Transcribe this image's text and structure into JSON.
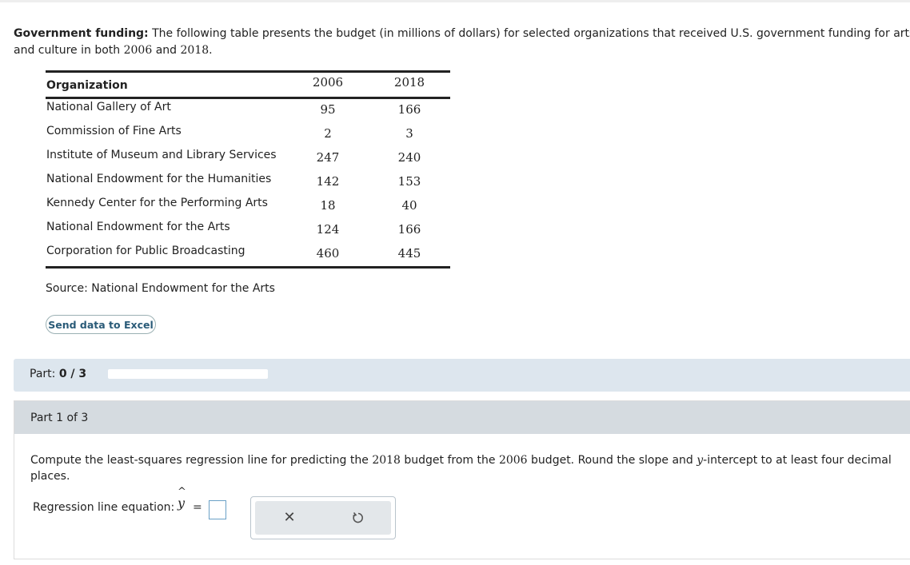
{
  "intro": {
    "title": "Government funding:",
    "text_line1": " The following table presents the budget (in millions of dollars) for selected organizations that received U.S. government funding for arts",
    "text_line2_a": "and culture in both ",
    "year_a": "2006",
    "text_line2_b": " and ",
    "year_b": "2018",
    "text_line2_c": "."
  },
  "table": {
    "headers": {
      "org": "Organization",
      "y2006": "2006",
      "y2018": "2018"
    },
    "rows": [
      {
        "org": "National Gallery of Art",
        "y2006": "95",
        "y2018": "166"
      },
      {
        "org": "Commission of Fine Arts",
        "y2006": "2",
        "y2018": "3"
      },
      {
        "org": "Institute of Museum and Library Services",
        "y2006": "247",
        "y2018": "240"
      },
      {
        "org": "National Endowment for the Humanities",
        "y2006": "142",
        "y2018": "153"
      },
      {
        "org": "Kennedy Center for the Performing Arts",
        "y2006": "18",
        "y2018": "40"
      },
      {
        "org": "National Endowment for the Arts",
        "y2006": "124",
        "y2018": "166"
      },
      {
        "org": "Corporation for Public Broadcasting",
        "y2006": "460",
        "y2018": "445"
      }
    ]
  },
  "source": "Source: National Endowment for the Arts",
  "excel_button": "Send data to Excel",
  "part_bar": {
    "label": "Part: ",
    "value": "0 / 3",
    "progress": 0
  },
  "part1": {
    "header": "Part 1 of 3",
    "question_a": "Compute the least-squares regression line for predicting the ",
    "q_year_a": "2018",
    "question_b": " budget from the ",
    "q_year_b": "2006",
    "question_c": " budget. Round the slope and ",
    "q_var": "y",
    "question_d": "-intercept to at least four decimal places.",
    "eq_label": "Regression line equation:",
    "yhat_var": "y",
    "equals": "="
  },
  "tools": {
    "clear_icon": "close-icon",
    "undo_icon": "undo-icon"
  },
  "colors": {
    "part_bar_bg": "#dde6ee",
    "part_header_bg": "#d5dbe0",
    "excel_text": "#2a5b78"
  }
}
